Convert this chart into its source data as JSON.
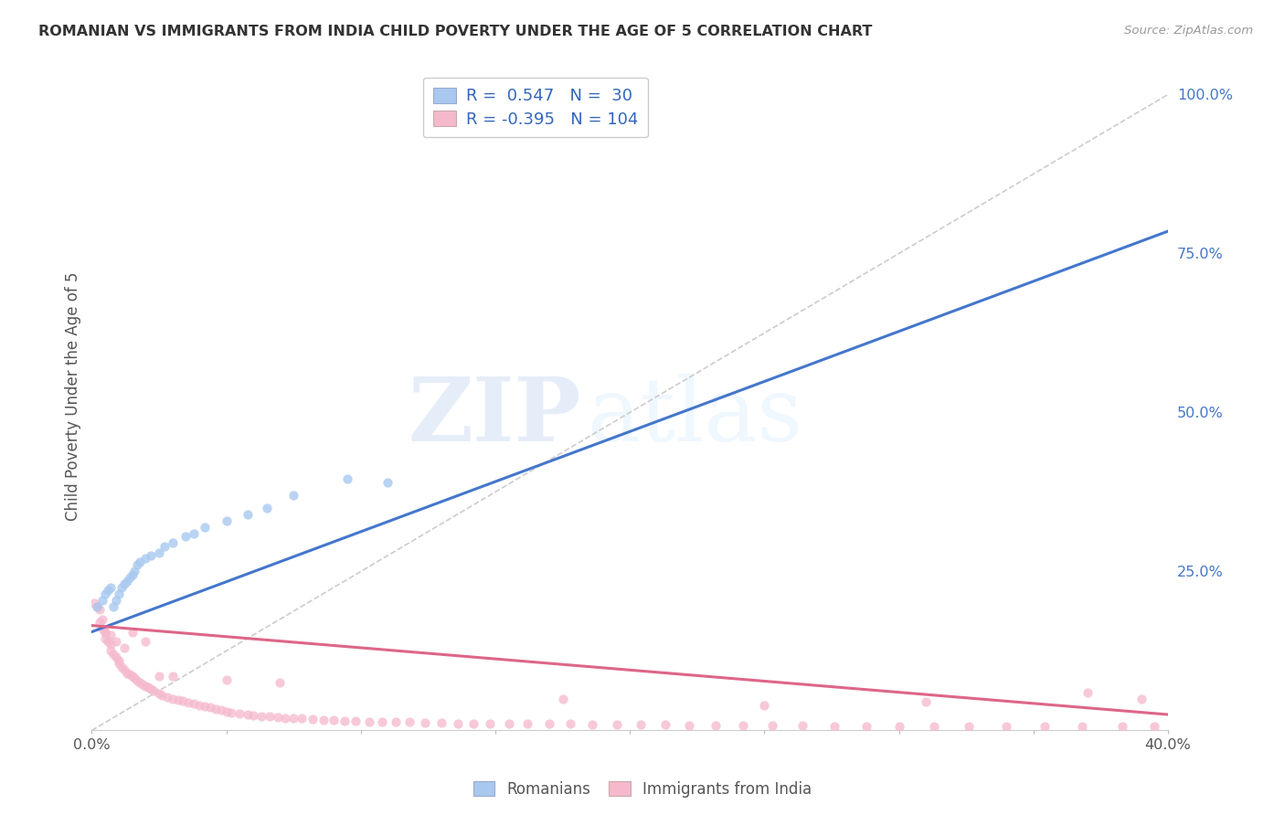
{
  "title": "ROMANIAN VS IMMIGRANTS FROM INDIA CHILD POVERTY UNDER THE AGE OF 5 CORRELATION CHART",
  "source": "Source: ZipAtlas.com",
  "ylabel": "Child Poverty Under the Age of 5",
  "xlim": [
    0.0,
    0.4
  ],
  "ylim": [
    0.0,
    1.05
  ],
  "x_tick_positions": [
    0.0,
    0.05,
    0.1,
    0.15,
    0.2,
    0.25,
    0.3,
    0.35,
    0.4
  ],
  "x_tick_labels": [
    "0.0%",
    "",
    "",
    "",
    "",
    "",
    "",
    "",
    "40.0%"
  ],
  "y_tick_positions": [
    0.0,
    0.25,
    0.5,
    0.75,
    1.0
  ],
  "y_tick_labels_right": [
    "",
    "25.0%",
    "50.0%",
    "75.0%",
    "100.0%"
  ],
  "romanian_R": 0.547,
  "romanian_N": 30,
  "india_R": -0.395,
  "india_N": 104,
  "blue_scatter_color": "#a8c8f0",
  "pink_scatter_color": "#f5b8cc",
  "blue_line_color": "#4477cc",
  "pink_line_color": "#dd6688",
  "diagonal_color": "#cccccc",
  "watermark_zip": "ZIP",
  "watermark_atlas": "atlas",
  "blue_line_x0": 0.0,
  "blue_line_y0": 0.155,
  "blue_line_x1": 0.4,
  "blue_line_y1": 0.785,
  "pink_line_x0": 0.0,
  "pink_line_y0": 0.165,
  "pink_line_x1": 0.4,
  "pink_line_y1": 0.025,
  "romanian_x": [
    0.002,
    0.004,
    0.005,
    0.006,
    0.007,
    0.008,
    0.009,
    0.01,
    0.011,
    0.012,
    0.013,
    0.014,
    0.015,
    0.016,
    0.017,
    0.018,
    0.02,
    0.022,
    0.025,
    0.027,
    0.03,
    0.035,
    0.038,
    0.042,
    0.05,
    0.058,
    0.065,
    0.075,
    0.095,
    0.11
  ],
  "romanian_y": [
    0.195,
    0.205,
    0.215,
    0.22,
    0.225,
    0.195,
    0.205,
    0.215,
    0.225,
    0.23,
    0.235,
    0.24,
    0.245,
    0.25,
    0.26,
    0.265,
    0.27,
    0.275,
    0.28,
    0.29,
    0.295,
    0.305,
    0.31,
    0.32,
    0.33,
    0.34,
    0.35,
    0.37,
    0.395,
    0.39
  ],
  "india_x": [
    0.001,
    0.002,
    0.003,
    0.004,
    0.004,
    0.005,
    0.005,
    0.006,
    0.007,
    0.007,
    0.008,
    0.009,
    0.01,
    0.01,
    0.011,
    0.012,
    0.013,
    0.014,
    0.015,
    0.016,
    0.017,
    0.018,
    0.019,
    0.02,
    0.021,
    0.022,
    0.023,
    0.025,
    0.026,
    0.028,
    0.03,
    0.032,
    0.034,
    0.036,
    0.038,
    0.04,
    0.042,
    0.044,
    0.046,
    0.048,
    0.05,
    0.052,
    0.055,
    0.058,
    0.06,
    0.063,
    0.066,
    0.069,
    0.072,
    0.075,
    0.078,
    0.082,
    0.086,
    0.09,
    0.094,
    0.098,
    0.103,
    0.108,
    0.113,
    0.118,
    0.124,
    0.13,
    0.136,
    0.142,
    0.148,
    0.155,
    0.162,
    0.17,
    0.178,
    0.186,
    0.195,
    0.204,
    0.213,
    0.222,
    0.232,
    0.242,
    0.253,
    0.264,
    0.276,
    0.288,
    0.3,
    0.313,
    0.326,
    0.34,
    0.354,
    0.368,
    0.383,
    0.395,
    0.003,
    0.005,
    0.007,
    0.009,
    0.012,
    0.015,
    0.02,
    0.025,
    0.03,
    0.05,
    0.07,
    0.175,
    0.25,
    0.31,
    0.37,
    0.39
  ],
  "india_y": [
    0.2,
    0.195,
    0.19,
    0.175,
    0.16,
    0.155,
    0.145,
    0.14,
    0.135,
    0.125,
    0.12,
    0.115,
    0.11,
    0.105,
    0.1,
    0.095,
    0.09,
    0.088,
    0.085,
    0.082,
    0.078,
    0.075,
    0.072,
    0.07,
    0.068,
    0.065,
    0.062,
    0.058,
    0.055,
    0.053,
    0.05,
    0.048,
    0.046,
    0.044,
    0.042,
    0.04,
    0.038,
    0.036,
    0.034,
    0.032,
    0.03,
    0.028,
    0.026,
    0.025,
    0.024,
    0.022,
    0.022,
    0.021,
    0.02,
    0.02,
    0.019,
    0.018,
    0.017,
    0.016,
    0.015,
    0.015,
    0.014,
    0.014,
    0.013,
    0.013,
    0.012,
    0.012,
    0.011,
    0.011,
    0.011,
    0.01,
    0.01,
    0.01,
    0.01,
    0.009,
    0.009,
    0.009,
    0.009,
    0.008,
    0.008,
    0.008,
    0.008,
    0.008,
    0.007,
    0.007,
    0.007,
    0.007,
    0.007,
    0.006,
    0.006,
    0.006,
    0.006,
    0.006,
    0.17,
    0.155,
    0.15,
    0.14,
    0.13,
    0.155,
    0.14,
    0.085,
    0.085,
    0.08,
    0.075,
    0.05,
    0.04,
    0.045,
    0.06,
    0.05
  ]
}
